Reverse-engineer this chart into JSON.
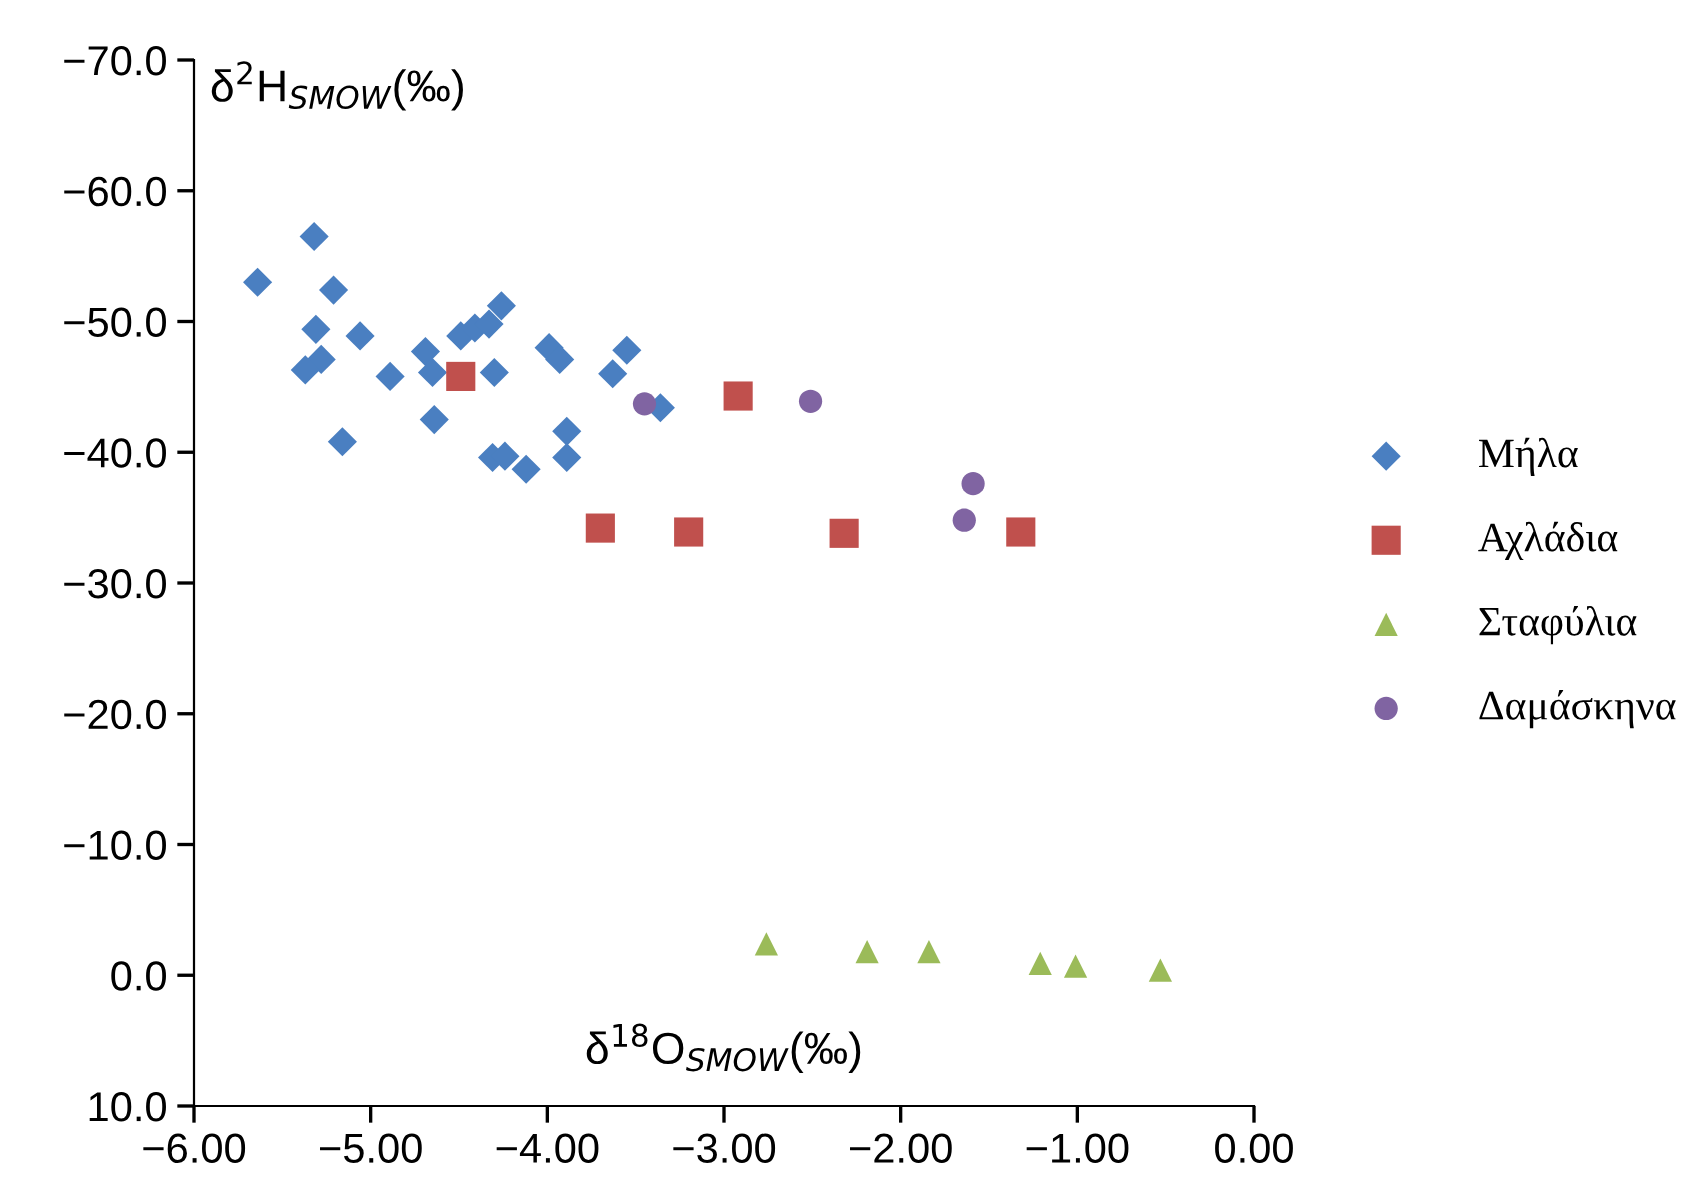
{
  "chart_data": {
    "type": "scatter",
    "xlabel": "δ$^{18}$O$_{SMOW}$(‰)",
    "ylabel": "δ$^{2}$H$_{SMOW}$(‰)",
    "xlim": [
      -6,
      0
    ],
    "ylim": [
      10,
      -70
    ],
    "xticks": [
      {
        "value": -6,
        "label": "−6.00"
      },
      {
        "value": -5,
        "label": "−5.00"
      },
      {
        "value": -4,
        "label": "−4.00"
      },
      {
        "value": -3,
        "label": "−3.00"
      },
      {
        "value": -2,
        "label": "−2.00"
      },
      {
        "value": -1,
        "label": "−1.00"
      },
      {
        "value": 0,
        "label": "0.00"
      }
    ],
    "yticks": [
      {
        "value": 10,
        "label": "10.0"
      },
      {
        "value": 0,
        "label": "0.0"
      },
      {
        "value": -10,
        "label": "−10.0"
      },
      {
        "value": -20,
        "label": "−20.0"
      },
      {
        "value": -30,
        "label": "−30.0"
      },
      {
        "value": -40,
        "label": "−40.0"
      },
      {
        "value": -50,
        "label": "−50.0"
      },
      {
        "value": -60,
        "label": "−60.0"
      },
      {
        "value": -70,
        "label": "−70.0"
      }
    ],
    "grid": false,
    "legend": "right",
    "series": [
      {
        "name": "Μήλα",
        "color": "#4a7fc1",
        "marker": "diamond",
        "x": [
          -5.64,
          -5.32,
          -5.21,
          -5.31,
          -5.28,
          -5.37,
          -5.06,
          -5.16,
          -4.89,
          -4.69,
          -4.65,
          -4.64,
          -4.49,
          -4.41,
          -4.33,
          -4.26,
          -4.3,
          -4.31,
          -4.24,
          -4.12,
          -3.99,
          -3.93,
          -3.89,
          -3.89,
          -3.63,
          -3.55,
          -3.36
        ],
        "values": [
          -53.0,
          -56.5,
          -52.4,
          -49.4,
          -47.1,
          -46.3,
          -48.9,
          -40.8,
          -45.8,
          -47.7,
          -46.1,
          -42.5,
          -48.9,
          -49.5,
          -49.8,
          -51.2,
          -46.1,
          -39.6,
          -39.7,
          -38.7,
          -48.0,
          -47.1,
          -41.6,
          -39.6,
          -46.0,
          -47.8,
          -43.4
        ]
      },
      {
        "name": "Αχλάδια",
        "color": "#c0504d",
        "marker": "square",
        "x": [
          -4.49,
          -3.7,
          -3.2,
          -2.32,
          -1.32,
          -2.92
        ],
        "values": [
          -45.8,
          -34.2,
          -33.9,
          -33.8,
          -33.9,
          -44.3
        ]
      },
      {
        "name": "Σταφύλια",
        "color": "#9bbb59",
        "marker": "triangle",
        "x": [
          -2.76,
          -2.19,
          -1.84,
          -1.21,
          -1.01,
          -0.53
        ],
        "values": [
          -2.4,
          -1.8,
          -1.8,
          -0.9,
          -0.7,
          -0.4
        ]
      },
      {
        "name": "Δαμάσκηνα",
        "color": "#8064a2",
        "marker": "circle",
        "x": [
          -3.45,
          -2.51,
          -1.59,
          -1.64
        ],
        "values": [
          -43.7,
          -43.9,
          -37.6,
          -34.8
        ]
      }
    ]
  }
}
